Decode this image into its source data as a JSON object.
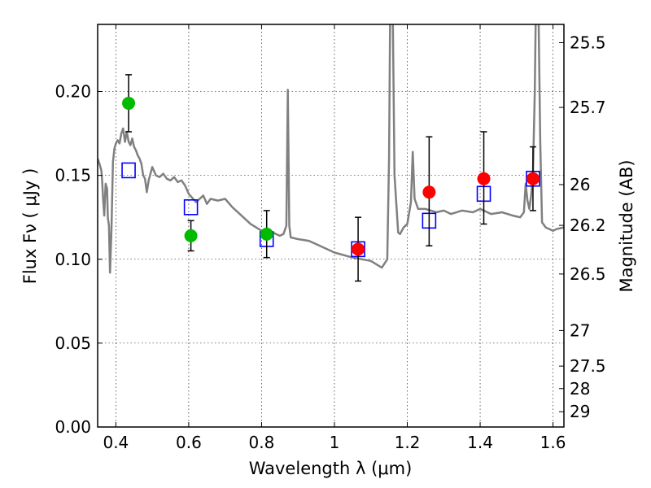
{
  "chart_data": {
    "type": "scatter",
    "xlabel": "Wavelength  λ (μm)",
    "ylabel": "Flux  Fν  ( μJy )",
    "ylabel_right": "Magnitude (AB)",
    "xlim": [
      0.35,
      1.63
    ],
    "ylim": [
      0.0,
      0.24
    ],
    "grid": true,
    "x_ticks": [
      0.4,
      0.6,
      0.8,
      1.0,
      1.2,
      1.4,
      1.6
    ],
    "x_tick_labels": [
      "0.4",
      "0.6",
      "0.8",
      "1",
      "1.2",
      "1.4",
      "1.6"
    ],
    "y_ticks": [
      0.0,
      0.05,
      0.1,
      0.15,
      0.2
    ],
    "y_tick_labels": [
      "0.00",
      "0.05",
      "0.10",
      "0.15",
      "0.20"
    ],
    "right_ticks": [
      {
        "label": "25.5",
        "flux": 0.2291
      },
      {
        "label": "25.7",
        "flux": 0.1905
      },
      {
        "label": "26",
        "flux": 0.1445
      },
      {
        "label": "26.2",
        "flux": 0.1202
      },
      {
        "label": "26.5",
        "flux": 0.0912
      },
      {
        "label": "27",
        "flux": 0.0575
      },
      {
        "label": "27.5",
        "flux": 0.0363
      },
      {
        "label": "28",
        "flux": 0.0229
      },
      {
        "label": "29",
        "flux": 0.0091
      }
    ],
    "series": [
      {
        "color": "#00bb00",
        "marker": "circle",
        "points": [
          {
            "x": 0.435,
            "y": 0.193,
            "ylo": 0.176,
            "yhi": 0.21
          },
          {
            "x": 0.606,
            "y": 0.114,
            "ylo": 0.105,
            "yhi": 0.123
          },
          {
            "x": 0.814,
            "y": 0.115,
            "ylo": 0.101,
            "yhi": 0.129
          }
        ]
      },
      {
        "color": "#ff0000",
        "marker": "circle",
        "points": [
          {
            "x": 1.065,
            "y": 0.106,
            "ylo": 0.087,
            "yhi": 0.125
          },
          {
            "x": 1.26,
            "y": 0.14,
            "ylo": 0.108,
            "yhi": 0.173
          },
          {
            "x": 1.41,
            "y": 0.148,
            "ylo": 0.121,
            "yhi": 0.176
          },
          {
            "x": 1.545,
            "y": 0.148,
            "ylo": 0.129,
            "yhi": 0.167
          }
        ]
      },
      {
        "color": "#0000ff",
        "marker": "open-square",
        "points": [
          {
            "x": 0.435,
            "y": 0.153
          },
          {
            "x": 0.606,
            "y": 0.131
          },
          {
            "x": 0.814,
            "y": 0.112
          },
          {
            "x": 1.065,
            "y": 0.106
          },
          {
            "x": 1.26,
            "y": 0.123
          },
          {
            "x": 1.41,
            "y": 0.139
          },
          {
            "x": 1.545,
            "y": 0.148
          }
        ]
      },
      {
        "color": "#808080",
        "marker": "line",
        "points": [
          [
            0.35,
            0.16
          ],
          [
            0.355,
            0.157
          ],
          [
            0.36,
            0.153
          ],
          [
            0.362,
            0.148
          ],
          [
            0.365,
            0.136
          ],
          [
            0.368,
            0.126
          ],
          [
            0.372,
            0.145
          ],
          [
            0.376,
            0.142
          ],
          [
            0.378,
            0.125
          ],
          [
            0.381,
            0.12
          ],
          [
            0.384,
            0.092
          ],
          [
            0.388,
            0.118
          ],
          [
            0.392,
            0.158
          ],
          [
            0.396,
            0.166
          ],
          [
            0.4,
            0.169
          ],
          [
            0.405,
            0.171
          ],
          [
            0.41,
            0.169
          ],
          [
            0.415,
            0.175
          ],
          [
            0.42,
            0.178
          ],
          [
            0.425,
            0.17
          ],
          [
            0.43,
            0.176
          ],
          [
            0.435,
            0.17
          ],
          [
            0.44,
            0.168
          ],
          [
            0.445,
            0.172
          ],
          [
            0.45,
            0.167
          ],
          [
            0.455,
            0.165
          ],
          [
            0.46,
            0.162
          ],
          [
            0.465,
            0.16
          ],
          [
            0.47,
            0.157
          ],
          [
            0.475,
            0.15
          ],
          [
            0.48,
            0.148
          ],
          [
            0.485,
            0.14
          ],
          [
            0.49,
            0.147
          ],
          [
            0.5,
            0.155
          ],
          [
            0.51,
            0.15
          ],
          [
            0.52,
            0.149
          ],
          [
            0.53,
            0.151
          ],
          [
            0.54,
            0.148
          ],
          [
            0.55,
            0.147
          ],
          [
            0.56,
            0.149
          ],
          [
            0.57,
            0.146
          ],
          [
            0.58,
            0.147
          ],
          [
            0.59,
            0.144
          ],
          [
            0.6,
            0.139
          ],
          [
            0.62,
            0.134
          ],
          [
            0.64,
            0.138
          ],
          [
            0.65,
            0.133
          ],
          [
            0.66,
            0.136
          ],
          [
            0.68,
            0.135
          ],
          [
            0.7,
            0.136
          ],
          [
            0.72,
            0.131
          ],
          [
            0.74,
            0.127
          ],
          [
            0.75,
            0.125
          ],
          [
            0.77,
            0.121
          ],
          [
            0.8,
            0.117
          ],
          [
            0.83,
            0.116
          ],
          [
            0.85,
            0.114
          ],
          [
            0.86,
            0.115
          ],
          [
            0.868,
            0.12
          ],
          [
            0.872,
            0.201
          ],
          [
            0.876,
            0.12
          ],
          [
            0.88,
            0.113
          ],
          [
            0.9,
            0.112
          ],
          [
            0.93,
            0.111
          ],
          [
            0.96,
            0.108
          ],
          [
            1.0,
            0.104
          ],
          [
            1.05,
            0.101
          ],
          [
            1.1,
            0.099
          ],
          [
            1.13,
            0.095
          ],
          [
            1.145,
            0.1
          ],
          [
            1.15,
            0.16
          ],
          [
            1.153,
            0.25
          ],
          [
            1.16,
            0.25
          ],
          [
            1.165,
            0.15
          ],
          [
            1.175,
            0.116
          ],
          [
            1.18,
            0.115
          ],
          [
            1.19,
            0.119
          ],
          [
            1.2,
            0.121
          ],
          [
            1.21,
            0.134
          ],
          [
            1.215,
            0.164
          ],
          [
            1.22,
            0.136
          ],
          [
            1.23,
            0.13
          ],
          [
            1.25,
            0.13
          ],
          [
            1.28,
            0.128
          ],
          [
            1.3,
            0.129
          ],
          [
            1.32,
            0.127
          ],
          [
            1.35,
            0.129
          ],
          [
            1.38,
            0.128
          ],
          [
            1.4,
            0.13
          ],
          [
            1.43,
            0.127
          ],
          [
            1.46,
            0.128
          ],
          [
            1.49,
            0.126
          ],
          [
            1.51,
            0.125
          ],
          [
            1.52,
            0.128
          ],
          [
            1.525,
            0.145
          ],
          [
            1.53,
            0.135
          ],
          [
            1.535,
            0.13
          ],
          [
            1.54,
            0.138
          ],
          [
            1.545,
            0.15
          ],
          [
            1.55,
            0.2
          ],
          [
            1.553,
            0.25
          ],
          [
            1.56,
            0.25
          ],
          [
            1.565,
            0.17
          ],
          [
            1.57,
            0.122
          ],
          [
            1.58,
            0.119
          ],
          [
            1.6,
            0.117
          ],
          [
            1.61,
            0.118
          ],
          [
            1.63,
            0.119
          ]
        ]
      }
    ]
  }
}
